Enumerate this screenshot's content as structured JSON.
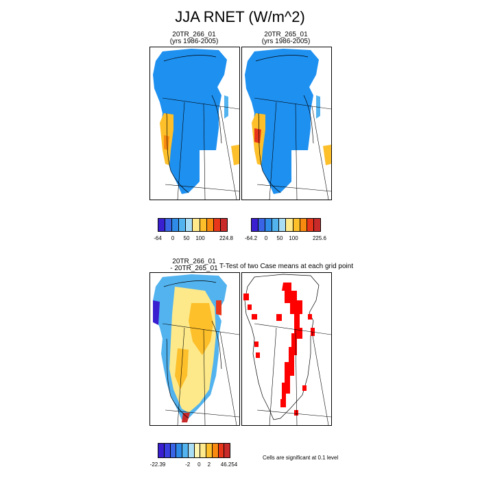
{
  "title": "JJA RNET (W/m^2)",
  "panels": {
    "top_left": {
      "line1": "20TR_266_01",
      "line2": "(yrs 1986-2005)"
    },
    "top_right": {
      "line1": "20TR_265_01",
      "line2": "(yrs 1986-2005)"
    },
    "bottom_left": {
      "line1": "20TR_266_01",
      "line2": "- 20TR_265_01"
    },
    "bottom_right": {
      "line1": "T-Test of two Case means at each grid point"
    }
  },
  "colorbars": {
    "cbar1": {
      "colors": [
        "#3a1fd1",
        "#3a64e6",
        "#2e8be8",
        "#52b3ef",
        "#a9dcf5",
        "#ffe98a",
        "#fdbf2a",
        "#f98a10",
        "#e8361a",
        "#c82a2a"
      ],
      "ticks": [
        "-64",
        "0",
        "50",
        "100",
        "224.8"
      ]
    },
    "cbar2": {
      "colors": [
        "#3a1fd1",
        "#3a64e6",
        "#2e8be8",
        "#52b3ef",
        "#a9dcf5",
        "#ffe98a",
        "#fdbf2a",
        "#f98a10",
        "#e8361a",
        "#c82a2a"
      ],
      "ticks": [
        "-64.2",
        "0",
        "50",
        "100",
        "225.6"
      ]
    },
    "cbar3": {
      "colors": [
        "#3a1fd1",
        "#3a3fe0",
        "#3a64e6",
        "#2e8be8",
        "#52b3ef",
        "#a9dcf5",
        "#fff5b0",
        "#ffe98a",
        "#fdbf2a",
        "#f98a10",
        "#e8361a",
        "#c82a2a"
      ],
      "ticks": [
        "-22.39",
        "-2",
        "0",
        "2",
        "46.254"
      ]
    }
  },
  "note": "Cells are significant at 0.1 level",
  "colors": {
    "ice_mean": "#1e90f0",
    "margin_warm": "#fdbf2a",
    "diff_fill": "#fde98a",
    "sig_cells": "#ff0000"
  }
}
